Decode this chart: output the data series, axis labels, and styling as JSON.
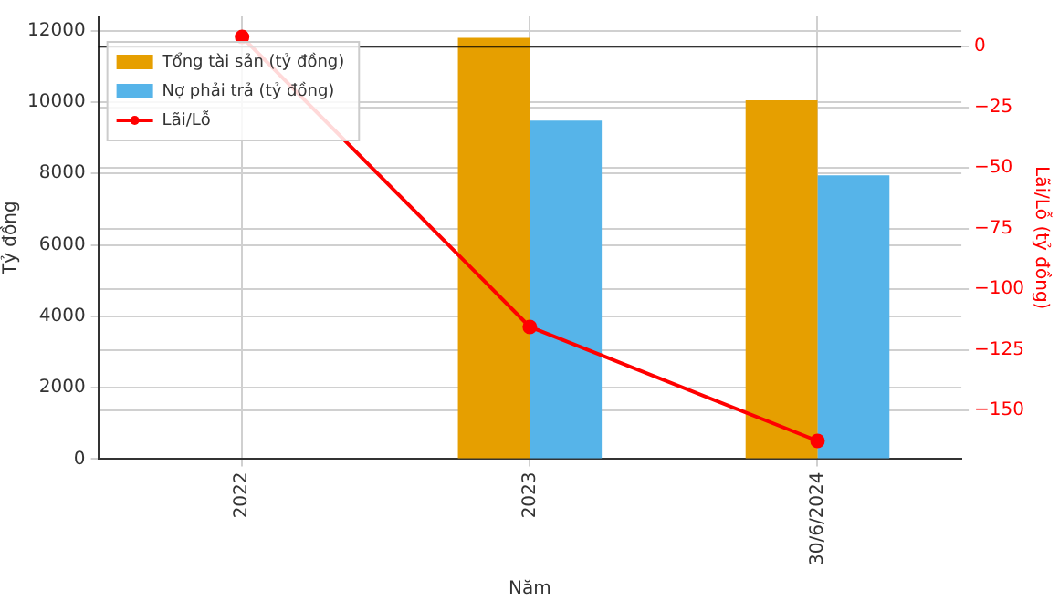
{
  "chart_data": {
    "type": "bar",
    "xlabel": "Năm",
    "ylabel": "Tỷ đồng",
    "y2label": "Lãi/Lỗ (tỷ đồng)",
    "categories": [
      "2022",
      "2023",
      "30/6/2024"
    ],
    "series": [
      {
        "name": "Tổng tài sản (tỷ đồng)",
        "color": "#e69f00",
        "values": [
          0,
          11800,
          10050
        ]
      },
      {
        "name": "Nợ phải trả (tỷ đồng)",
        "color": "#56b4e9",
        "values": [
          0,
          9480,
          7950
        ]
      },
      {
        "name": "Lãi/Lỗ",
        "type": "line",
        "axis": "y2",
        "color": "#ff0000",
        "values": [
          4,
          -115.5,
          -162.5
        ],
        "marker": "circle"
      }
    ],
    "ylim": [
      0,
      12400
    ],
    "yticks": [
      0,
      2000,
      4000,
      6000,
      8000,
      10000,
      12000
    ],
    "y2lim": [
      -170,
      12.5
    ],
    "y2ticks": [
      {
        "value": 0,
        "label": "0"
      },
      {
        "value": -25,
        "label": "−25"
      },
      {
        "value": -50,
        "label": "−50"
      },
      {
        "value": -75,
        "label": "−75"
      },
      {
        "value": -100,
        "label": "−100"
      },
      {
        "value": -125,
        "label": "−125"
      },
      {
        "value": -150,
        "label": "−150"
      }
    ],
    "ref_lines": [
      {
        "axis": "y2",
        "value": 0,
        "color": "#000000"
      }
    ],
    "grid": true,
    "legend": "top left"
  }
}
